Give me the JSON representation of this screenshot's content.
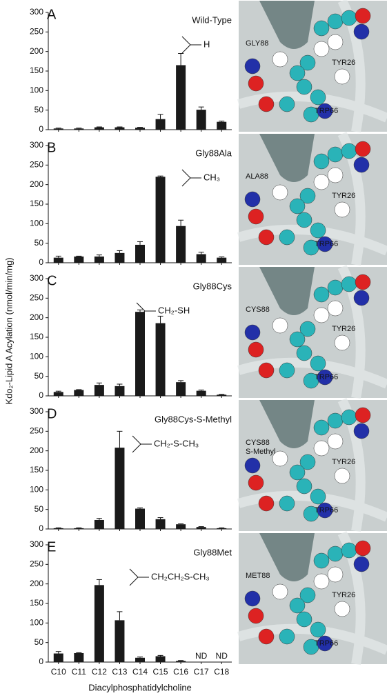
{
  "ylabel": "Kdo₂-Lipid A  Acylation (nmol/min/mg)",
  "xlabel": "Diacylphosphatidylcholine",
  "categories": [
    "C10",
    "C11",
    "C12",
    "C13",
    "C14",
    "C15",
    "C16",
    "C17",
    "C18"
  ],
  "chart_data": [
    {
      "type": "bar",
      "panel": "A",
      "title": "Wild-Type",
      "side_chain": "H",
      "color": "#1a1a1a",
      "values": [
        3,
        3,
        6,
        6,
        5,
        27,
        165,
        51,
        20
      ],
      "errors": [
        1,
        1,
        1,
        1,
        1,
        12,
        30,
        7,
        2
      ],
      "ylim": [
        0,
        300
      ],
      "yticks": [
        0,
        50,
        100,
        150,
        200,
        250,
        300
      ],
      "image_labels": [
        "GLY88",
        "TYR26",
        "TRP66"
      ]
    },
    {
      "type": "bar",
      "panel": "B",
      "title": "Gly88Ala",
      "side_chain": "CH₃",
      "color": "#1a1a1a",
      "values": [
        13,
        16,
        16,
        25,
        46,
        220,
        94,
        22,
        13
      ],
      "errors": [
        4,
        1,
        4,
        6,
        8,
        2,
        15,
        5,
        2
      ],
      "ylim": [
        0,
        300
      ],
      "yticks": [
        0,
        50,
        100,
        150,
        200,
        250,
        300
      ],
      "image_labels": [
        "ALA88",
        "TYR26",
        "TRP66"
      ]
    },
    {
      "type": "bar",
      "panel": "C",
      "title": "Gly88Cys",
      "side_chain": "CH₂-SH",
      "color": "#1a1a1a",
      "values": [
        10,
        15,
        28,
        25,
        215,
        186,
        35,
        13,
        3
      ],
      "errors": [
        2,
        1,
        5,
        5,
        5,
        18,
        4,
        2,
        1
      ],
      "ylim": [
        0,
        300
      ],
      "yticks": [
        0,
        50,
        100,
        150,
        200,
        250,
        300
      ],
      "image_labels": [
        "CYS88",
        "TYR26",
        "TRP66"
      ]
    },
    {
      "type": "bar",
      "panel": "D",
      "title": "Gly88Cys-S-Methyl",
      "side_chain": "CH₂-S-CH₃",
      "color": "#1a1a1a",
      "values": [
        2,
        2,
        23,
        208,
        52,
        25,
        12,
        5,
        2
      ],
      "errors": [
        1,
        1,
        4,
        42,
        2,
        4,
        1,
        1,
        1
      ],
      "ylim": [
        0,
        300
      ],
      "yticks": [
        0,
        50,
        100,
        150,
        200,
        250,
        300
      ],
      "image_labels": [
        "CYS88",
        "S-Methyl",
        "TYR26",
        "TRP66"
      ]
    },
    {
      "type": "bar",
      "panel": "E",
      "title": "Gly88Met",
      "side_chain": "CH₂CH₂S-CH₃",
      "color": "#1a1a1a",
      "values": [
        22,
        23,
        197,
        107,
        11,
        15,
        3,
        null,
        null
      ],
      "errors": [
        5,
        1,
        14,
        22,
        2,
        2,
        1,
        null,
        null
      ],
      "value_labels": [
        null,
        null,
        null,
        null,
        null,
        null,
        null,
        "ND",
        "ND"
      ],
      "ylim": [
        0,
        300
      ],
      "yticks": [
        0,
        50,
        100,
        150,
        200,
        250,
        300
      ],
      "image_labels": [
        "MET88",
        "TYR26",
        "TRP66"
      ]
    }
  ]
}
